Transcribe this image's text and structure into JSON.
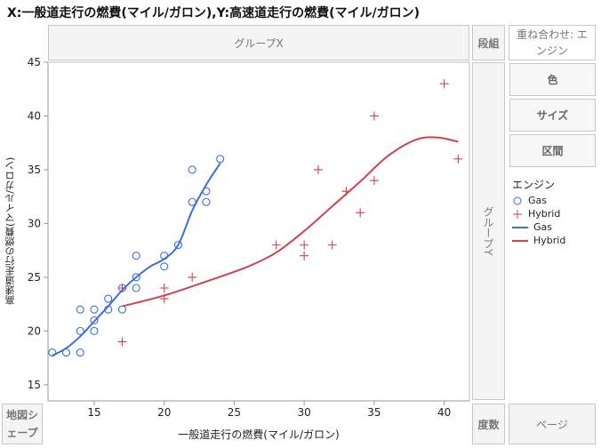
{
  "title": "X:一般道走行の燃費(マイル/ガロン),Y:高速道走行の燃費(マイル/ガロン)",
  "zones": {
    "group_x": "グループX",
    "group_y": "グループY",
    "wrap": "段組",
    "overlay": "重ね合わせ: エンジン",
    "map_shape": "地図シェープ",
    "freq": "度数",
    "page": "ページ"
  },
  "buttons": {
    "color": "色",
    "size": "サイズ",
    "interval": "区間"
  },
  "legend": {
    "title": "エンジン",
    "items": [
      "Gas",
      "Hybrid",
      "Gas",
      "Hybrid"
    ]
  },
  "colors": {
    "gas": "#3c6fd6",
    "hybrid": "#d1424f"
  },
  "chart_data": {
    "type": "scatter",
    "xlabel": "一般道走行の燃費(マイル/ガロン)",
    "ylabel": "高速道走行の燃費(マイル/ガロン)",
    "xlim": [
      11.7,
      41.8
    ],
    "ylim": [
      13.5,
      45
    ],
    "xticks": [
      15,
      20,
      25,
      30,
      35,
      40
    ],
    "yticks": [
      15,
      20,
      25,
      30,
      35,
      40,
      45
    ],
    "legend_position": "right",
    "series": [
      {
        "name": "Gas",
        "marker": "circle",
        "points": [
          [
            12,
            18
          ],
          [
            13,
            18
          ],
          [
            14,
            18
          ],
          [
            14,
            20
          ],
          [
            14,
            22
          ],
          [
            15,
            20
          ],
          [
            15,
            21
          ],
          [
            15,
            22
          ],
          [
            16,
            22
          ],
          [
            16,
            23
          ],
          [
            17,
            22
          ],
          [
            17,
            24
          ],
          [
            18,
            24
          ],
          [
            18,
            25
          ],
          [
            18,
            27
          ],
          [
            20,
            26
          ],
          [
            20,
            27
          ],
          [
            21,
            28
          ],
          [
            22,
            32
          ],
          [
            22,
            35
          ],
          [
            23,
            32
          ],
          [
            23,
            33
          ],
          [
            24,
            36
          ]
        ]
      },
      {
        "name": "Hybrid",
        "marker": "plus",
        "points": [
          [
            17,
            19
          ],
          [
            17,
            24
          ],
          [
            20,
            23
          ],
          [
            20,
            24
          ],
          [
            22,
            25
          ],
          [
            28,
            28
          ],
          [
            30,
            27
          ],
          [
            30,
            28
          ],
          [
            31,
            35
          ],
          [
            32,
            28
          ],
          [
            33,
            33
          ],
          [
            34,
            31
          ],
          [
            35,
            34
          ],
          [
            35,
            40
          ],
          [
            40,
            43
          ],
          [
            41,
            36
          ]
        ]
      }
    ],
    "smoothers": [
      {
        "name": "Gas",
        "points": [
          [
            12,
            17.7
          ],
          [
            13,
            18.4
          ],
          [
            14,
            19.5
          ],
          [
            15,
            20.9
          ],
          [
            16,
            22.3
          ],
          [
            17,
            23.8
          ],
          [
            18,
            25
          ],
          [
            19,
            26
          ],
          [
            20,
            26.7
          ],
          [
            21,
            28
          ],
          [
            22,
            31.2
          ],
          [
            23,
            33.6
          ],
          [
            24,
            35.6
          ]
        ]
      },
      {
        "name": "Hybrid",
        "points": [
          [
            17,
            22.3
          ],
          [
            20,
            23.3
          ],
          [
            23,
            24.6
          ],
          [
            26,
            26
          ],
          [
            28,
            27.3
          ],
          [
            30,
            29.3
          ],
          [
            32,
            31.6
          ],
          [
            34,
            33.9
          ],
          [
            36,
            36.3
          ],
          [
            38,
            37.8
          ],
          [
            39.5,
            38
          ],
          [
            41,
            37.6
          ]
        ]
      }
    ]
  }
}
